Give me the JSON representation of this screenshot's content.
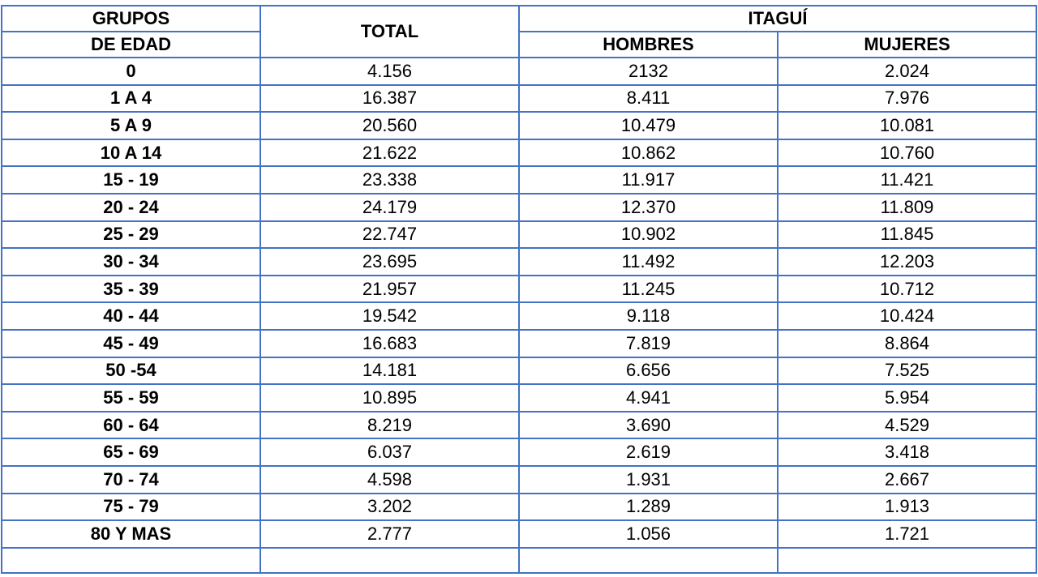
{
  "header": {
    "grupos": "GRUPOS",
    "de_edad": "DE EDAD",
    "total": "TOTAL",
    "region": "ITAGUÍ",
    "hombres": "HOMBRES",
    "mujeres": "MUJERES"
  },
  "table": {
    "rows": [
      [
        "0",
        "4.156",
        "2132",
        "2.024"
      ],
      [
        "1 A 4",
        "16.387",
        "8.411",
        "7.976"
      ],
      [
        "5 A 9",
        "20.560",
        "10.479",
        "10.081"
      ],
      [
        "10 A 14",
        "21.622",
        "10.862",
        "10.760"
      ],
      [
        "15 - 19",
        "23.338",
        "11.917",
        "11.421"
      ],
      [
        "20 - 24",
        "24.179",
        "12.370",
        "11.809"
      ],
      [
        "25 - 29",
        "22.747",
        "10.902",
        "11.845"
      ],
      [
        "30 - 34",
        "23.695",
        "11.492",
        "12.203"
      ],
      [
        "35 - 39",
        "21.957",
        "11.245",
        "10.712"
      ],
      [
        "40 - 44",
        "19.542",
        "9.118",
        "10.424"
      ],
      [
        "45 - 49",
        "16.683",
        "7.819",
        "8.864"
      ],
      [
        "50 -54",
        "14.181",
        "6.656",
        "7.525"
      ],
      [
        "55 - 59",
        "10.895",
        "4.941",
        "5.954"
      ],
      [
        "60 - 64",
        "8.219",
        "3.690",
        "4.529"
      ],
      [
        "65 - 69",
        "6.037",
        "2.619",
        "3.418"
      ],
      [
        "70 - 74",
        "4.598",
        "1.931",
        "2.667"
      ],
      [
        "75 - 79",
        "3.202",
        "1.289",
        "1.913"
      ],
      [
        "80 Y MAS",
        "2.777",
        "1.056",
        "1.721"
      ]
    ]
  }
}
